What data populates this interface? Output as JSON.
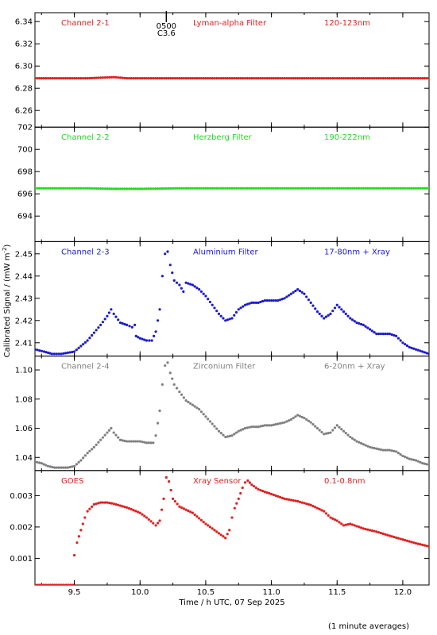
{
  "chart_data": {
    "type": "scatter",
    "xlabel": "Time / h UTC, 07 Sep 2025",
    "ylabel": "Calibrated Signal / (mW m",
    "ylabel_sup": "-2",
    "ylabel_close": ")",
    "footnote": "(1 minute averages)",
    "xlim": [
      9.2,
      12.2
    ],
    "xticks": [
      9.5,
      10.0,
      10.5,
      11.0,
      11.5,
      12.0
    ],
    "xtick_labels": [
      "9.5",
      "10.0",
      "10.5",
      "11.0",
      "11.5",
      "12.0"
    ],
    "marker_annotation": {
      "x": 10.2,
      "line1": "0500",
      "line2": "C3.6"
    },
    "panels": [
      {
        "channel": "Channel 2-1",
        "filter": "Lyman-alpha Filter",
        "band": "120-123nm",
        "color": "#e02020",
        "ylim": [
          6.245,
          6.348
        ],
        "yticks": [
          6.26,
          6.28,
          6.3,
          6.32,
          6.34
        ],
        "ytick_labels": [
          "6.26",
          "6.28",
          "6.30",
          "6.32",
          "6.34"
        ],
        "series": [
          {
            "x": [
              9.2,
              9.6,
              9.8,
              9.9,
              10.2,
              10.6,
              11.0,
              11.5,
              12.2
            ],
            "y": [
              6.289,
              6.289,
              6.29,
              6.289,
              6.289,
              6.289,
              6.289,
              6.289,
              6.289
            ]
          }
        ]
      },
      {
        "channel": "Channel 2-2",
        "filter": "Herzberg Filter",
        "band": "190-222nm",
        "color": "#22dd22",
        "ylim": [
          691.7,
          702.0
        ],
        "yticks": [
          694,
          696,
          698,
          700,
          702
        ],
        "ytick_labels": [
          "694",
          "696",
          "698",
          "700",
          "702"
        ],
        "series": [
          {
            "x": [
              9.2,
              9.6,
              9.8,
              10.0,
              10.3,
              10.7,
              11.0,
              11.5,
              12.2
            ],
            "y": [
              696.5,
              696.5,
              696.45,
              696.45,
              696.5,
              696.5,
              696.5,
              696.5,
              696.5
            ]
          }
        ]
      },
      {
        "channel": "Channel 2-3",
        "filter": "Aluminium Filter",
        "band": "17-80nm + Xray",
        "color": "#1a1ad0",
        "ylim": [
          2.404,
          2.4555
        ],
        "yticks": [
          2.41,
          2.42,
          2.43,
          2.44,
          2.45
        ],
        "ytick_labels": [
          "2.41",
          "2.42",
          "2.43",
          "2.44",
          "2.45"
        ],
        "series": [
          {
            "x": [
              9.2,
              9.27,
              9.33,
              9.4,
              9.5,
              9.6,
              9.7,
              9.75,
              9.78,
              9.8,
              9.85,
              9.9,
              9.94,
              9.96
            ],
            "y": [
              2.407,
              2.406,
              2.405,
              2.405,
              2.406,
              2.411,
              2.418,
              2.422,
              2.425,
              2.423,
              2.419,
              2.418,
              2.417,
              2.418
            ]
          },
          {
            "x": [
              9.97,
              10.0,
              10.05,
              10.09,
              10.12,
              10.15,
              10.17,
              10.19,
              10.21,
              10.23,
              10.26,
              10.3,
              10.33,
              10.35,
              10.4,
              10.45,
              10.5,
              10.55,
              10.6,
              10.65,
              10.7,
              10.75,
              10.8,
              10.85,
              10.9,
              10.95,
              11.0,
              11.05,
              11.1,
              11.15,
              11.2,
              11.25,
              11.3,
              11.35,
              11.4,
              11.45,
              11.5,
              11.55,
              11.6,
              11.65,
              11.7,
              11.75,
              11.8,
              11.85,
              11.9,
              11.95,
              12.0,
              12.05,
              12.1,
              12.15,
              12.2
            ],
            "y": [
              2.413,
              2.412,
              2.411,
              2.411,
              2.415,
              2.425,
              2.44,
              2.45,
              2.451,
              2.445,
              2.438,
              2.436,
              2.433,
              2.437,
              2.436,
              2.434,
              2.431,
              2.427,
              2.423,
              2.42,
              2.421,
              2.425,
              2.427,
              2.428,
              2.428,
              2.429,
              2.429,
              2.429,
              2.43,
              2.432,
              2.434,
              2.432,
              2.428,
              2.424,
              2.421,
              2.423,
              2.427,
              2.424,
              2.421,
              2.419,
              2.418,
              2.416,
              2.414,
              2.414,
              2.414,
              2.413,
              2.41,
              2.408,
              2.407,
              2.406,
              2.405
            ]
          }
        ]
      },
      {
        "channel": "Channel 2-4",
        "filter": "Zirconium Filter",
        "band": "6-20nm + Xray",
        "color": "#808080",
        "ylim": [
          1.031,
          1.1095
        ],
        "yticks": [
          1.04,
          1.06,
          1.08,
          1.1
        ],
        "ytick_labels": [
          "1.04",
          "1.06",
          "1.08",
          "1.10"
        ],
        "series": [
          {
            "x": [
              9.2,
              9.25,
              9.3,
              9.35,
              9.4,
              9.45,
              9.5,
              9.55,
              9.6,
              9.65,
              9.7,
              9.75,
              9.78,
              9.8,
              9.85,
              9.9,
              9.95,
              10.0,
              10.05,
              10.1,
              10.12,
              10.15,
              10.17,
              10.19,
              10.21,
              10.23,
              10.26,
              10.3,
              10.35,
              10.4,
              10.45,
              10.5,
              10.55,
              10.6,
              10.65,
              10.7,
              10.75,
              10.8,
              10.85,
              10.9,
              10.95,
              11.0,
              11.05,
              11.1,
              11.15,
              11.2,
              11.25,
              11.3,
              11.35,
              11.4,
              11.45,
              11.5,
              11.55,
              11.6,
              11.65,
              11.7,
              11.75,
              11.8,
              11.85,
              11.9,
              11.95,
              12.0,
              12.05,
              12.1,
              12.15,
              12.2
            ],
            "y": [
              1.037,
              1.036,
              1.034,
              1.033,
              1.033,
              1.033,
              1.034,
              1.038,
              1.043,
              1.047,
              1.052,
              1.057,
              1.06,
              1.057,
              1.052,
              1.051,
              1.051,
              1.051,
              1.05,
              1.05,
              1.055,
              1.072,
              1.09,
              1.103,
              1.105,
              1.098,
              1.09,
              1.085,
              1.079,
              1.076,
              1.073,
              1.068,
              1.063,
              1.058,
              1.054,
              1.055,
              1.058,
              1.06,
              1.061,
              1.061,
              1.062,
              1.062,
              1.063,
              1.064,
              1.066,
              1.069,
              1.067,
              1.064,
              1.06,
              1.056,
              1.057,
              1.062,
              1.058,
              1.054,
              1.051,
              1.049,
              1.047,
              1.046,
              1.045,
              1.045,
              1.044,
              1.041,
              1.039,
              1.038,
              1.036,
              1.035
            ]
          }
        ]
      },
      {
        "channel": "GOES",
        "filter": "Xray Sensor",
        "band": "0.1-0.8nm",
        "color": "#e02020",
        "ylim": [
          0.00015,
          0.0038
        ],
        "yticks": [
          0.001,
          0.002,
          0.003
        ],
        "ytick_labels": [
          "0.001",
          "0.002",
          "0.003"
        ],
        "series": [
          {
            "x": [
              9.2,
              9.3,
              9.4,
              9.49,
              9.5,
              9.52,
              9.55,
              9.58,
              9.6,
              9.65,
              9.7,
              9.75,
              9.8,
              9.9,
              10.0,
              10.05,
              10.1,
              10.12,
              10.15,
              10.18,
              10.2,
              10.22,
              10.25,
              10.3,
              10.4,
              10.5,
              10.6,
              10.65,
              10.68,
              10.7,
              10.72,
              10.75,
              10.78,
              10.8,
              10.82,
              10.85,
              10.9,
              10.95,
              11.0,
              11.1,
              11.2,
              11.3,
              11.4,
              11.45,
              11.5,
              11.55,
              11.6,
              11.7,
              11.8,
              11.9,
              12.0,
              12.1,
              12.2
            ],
            "y": [
              0.00015,
              0.00015,
              0.00015,
              0.00015,
              0.0011,
              0.0015,
              0.0019,
              0.0023,
              0.0025,
              0.00272,
              0.00278,
              0.00278,
              0.00274,
              0.00262,
              0.00245,
              0.0023,
              0.00212,
              0.00205,
              0.0022,
              0.0029,
              0.00358,
              0.00345,
              0.0029,
              0.00265,
              0.00245,
              0.0021,
              0.0018,
              0.00165,
              0.0019,
              0.0023,
              0.0026,
              0.0029,
              0.00325,
              0.00342,
              0.00348,
              0.00335,
              0.0032,
              0.00312,
              0.00305,
              0.0029,
              0.00282,
              0.0027,
              0.0025,
              0.0023,
              0.0022,
              0.00205,
              0.0021,
              0.00195,
              0.00185,
              0.00172,
              0.0016,
              0.00148,
              0.00138
            ]
          }
        ]
      }
    ]
  }
}
